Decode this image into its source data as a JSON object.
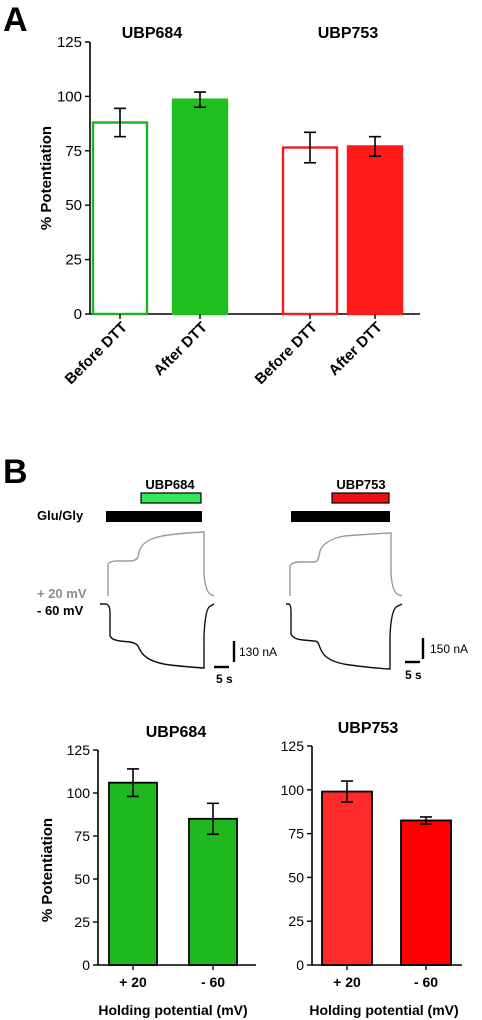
{
  "panel_a": {
    "letter": "A",
    "chart_data": {
      "type": "bar",
      "titles": [
        "UBP684",
        "UBP753"
      ],
      "ylabel": "% Potentiation",
      "ylim": [
        0,
        125
      ],
      "yticks": [
        "0",
        "25",
        "50",
        "75",
        "100",
        "125"
      ],
      "categories": [
        "Before DTT",
        "After DTT",
        "Before DTT",
        "After DTT"
      ],
      "values": [
        88,
        98.5,
        76.5,
        77
      ],
      "errors": [
        6.5,
        3.5,
        7,
        4.5
      ],
      "fills": [
        "#ffffff",
        "#1fbf1f",
        "#ffffff",
        "#ff1a1a"
      ],
      "strokes": [
        "#22b022",
        "#1fbf1f",
        "#e82020",
        "#ff1a1a"
      ]
    }
  },
  "panel_b": {
    "letter": "B",
    "traces": [
      {
        "drug_label": "UBP684",
        "agonist_label": "Glu/Gly",
        "upper_trace_label": "+ 20 mV",
        "lower_trace_label": "- 60 mV",
        "current_scale": "130 nA",
        "time_scale": "5 s",
        "drug_bar_color": "#33e65c"
      },
      {
        "drug_label": "UBP753",
        "current_scale": "150 nA",
        "time_scale": "5 s",
        "drug_bar_color": "#ee1111"
      }
    ],
    "charts": [
      {
        "type": "bar",
        "title": "UBP684",
        "ylabel": "% Potentiation",
        "xlabel": "Holding potential (mV)",
        "ylim": [
          0,
          125
        ],
        "yticks": [
          "0",
          "25",
          "50",
          "75",
          "100",
          "125"
        ],
        "categories": [
          "+ 20",
          "- 60"
        ],
        "values": [
          106,
          85
        ],
        "errors": [
          8,
          9
        ],
        "fill": "#1fb81f"
      },
      {
        "type": "bar",
        "title": "UBP753",
        "xlabel": "Holding potential (mV)",
        "ylim": [
          0,
          125
        ],
        "yticks": [
          "0",
          "25",
          "50",
          "75",
          "100",
          "125"
        ],
        "categories": [
          "+ 20",
          "- 60"
        ],
        "values": [
          99,
          82.5
        ],
        "errors": [
          6,
          2
        ],
        "fills": [
          "#ff2a2a",
          "#ff0000"
        ]
      }
    ]
  }
}
